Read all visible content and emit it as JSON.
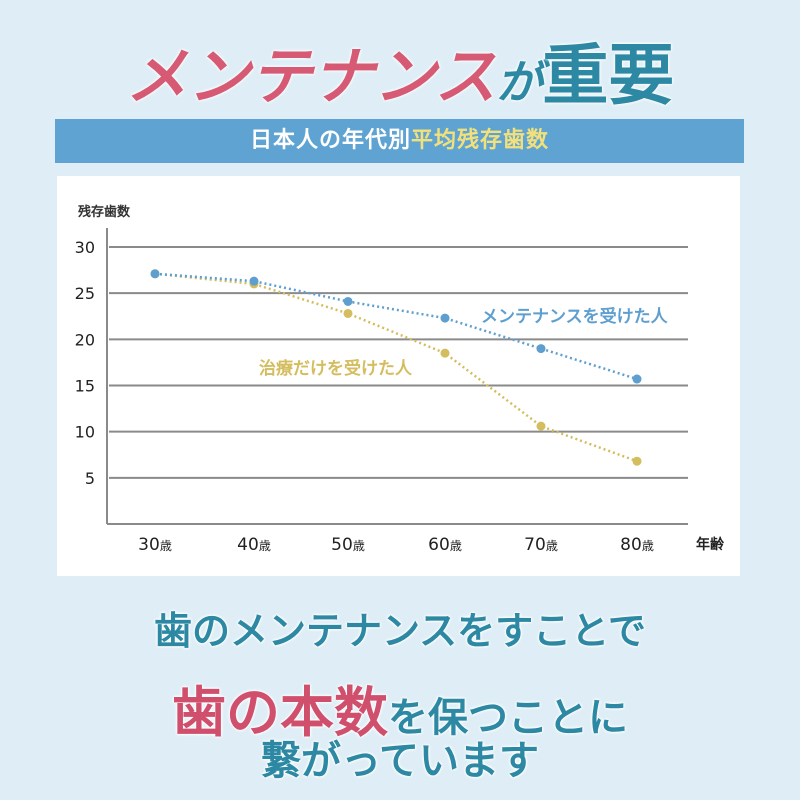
{
  "headline": {
    "part1": "メンテナンス",
    "part2": "が",
    "part3": "重要"
  },
  "banner": {
    "part1": "日本人の年代別",
    "part2": "平均残存歯数"
  },
  "colors": {
    "background": "#dfeef6",
    "pink": "#d65a74",
    "teal": "#2c88a3",
    "banner": "#5fa3d3",
    "banner_highlight": "#f2e07a",
    "series_maintenance": "#5e9fd0",
    "series_treatment": "#d4bd5e",
    "grid": "#808080"
  },
  "chart_data": {
    "type": "line",
    "title": "日本人の年代別平均残存歯数",
    "xlabel": "年齢",
    "ylabel": "残存歯数",
    "categories": [
      "30歳",
      "40歳",
      "50歳",
      "60歳",
      "70歳",
      "80歳"
    ],
    "y_ticks": [
      5,
      10,
      15,
      20,
      25,
      30
    ],
    "ylim": [
      0,
      30
    ],
    "grid": true,
    "legend_position": "inline labels",
    "series": [
      {
        "name": "メンテナンスを受けた人",
        "color": "#5e9fd0",
        "style": "dotted",
        "values": [
          27.1,
          26.3,
          24.1,
          22.3,
          19.0,
          15.7
        ]
      },
      {
        "name": "治療だけを受けた人",
        "color": "#d4bd5e",
        "style": "dotted",
        "values": [
          27.1,
          26.0,
          22.8,
          18.5,
          10.6,
          6.8
        ]
      }
    ]
  },
  "bottom": {
    "line1": "歯のメンテナンスをすことで",
    "line2_highlight": "歯の本数",
    "line2_rest": "を保つことに",
    "line3": "繋がっています"
  }
}
